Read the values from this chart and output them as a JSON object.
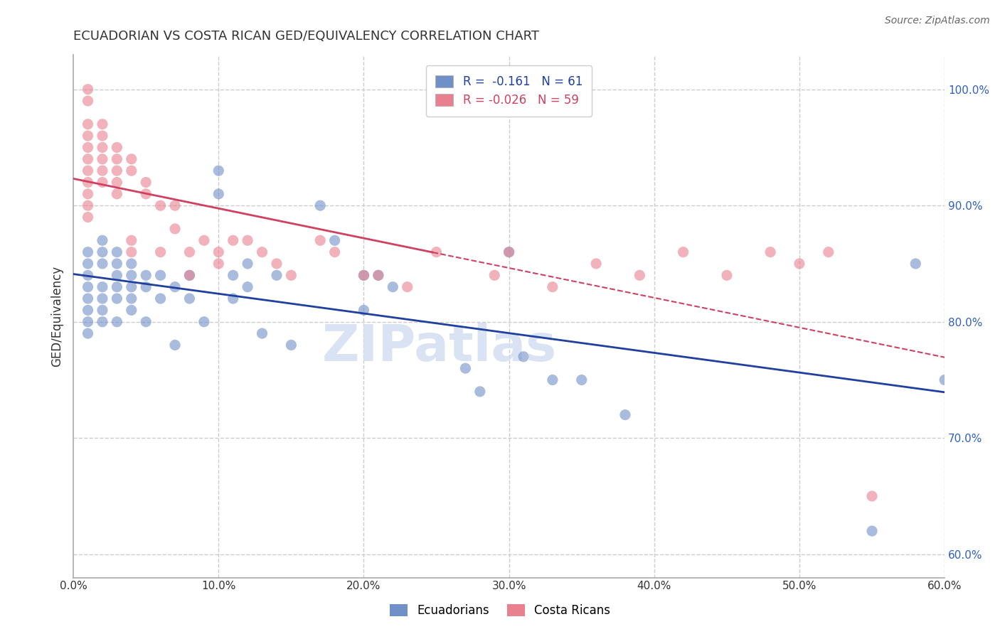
{
  "title": "ECUADORIAN VS COSTA RICAN GED/EQUIVALENCY CORRELATION CHART",
  "source": "Source: ZipAtlas.com",
  "ylabel": "GED/Equivalency",
  "xlabel_ticks": [
    "0.0%",
    "10.0%",
    "20.0%",
    "30.0%",
    "40.0%",
    "50.0%",
    "60.0%"
  ],
  "xlabel_vals": [
    0.0,
    0.1,
    0.2,
    0.3,
    0.4,
    0.5,
    0.6
  ],
  "ylabel_ticks": [
    "60.0%",
    "70.0%",
    "80.0%",
    "90.0%",
    "100.0%"
  ],
  "ylabel_vals": [
    0.6,
    0.7,
    0.8,
    0.9,
    1.0
  ],
  "xlim": [
    0.0,
    0.6
  ],
  "ylim": [
    0.58,
    1.03
  ],
  "blue_color": "#7090c8",
  "pink_color": "#e88090",
  "blue_line_color": "#2040a0",
  "pink_line_color": "#d04060",
  "blue_R": -0.161,
  "blue_N": 61,
  "pink_R": -0.026,
  "pink_N": 59,
  "ecuadorian_x": [
    0.01,
    0.01,
    0.01,
    0.01,
    0.01,
    0.01,
    0.01,
    0.01,
    0.02,
    0.02,
    0.02,
    0.02,
    0.02,
    0.02,
    0.02,
    0.03,
    0.03,
    0.03,
    0.03,
    0.03,
    0.03,
    0.04,
    0.04,
    0.04,
    0.04,
    0.04,
    0.05,
    0.05,
    0.05,
    0.06,
    0.06,
    0.07,
    0.07,
    0.08,
    0.08,
    0.09,
    0.1,
    0.1,
    0.11,
    0.11,
    0.12,
    0.12,
    0.13,
    0.14,
    0.15,
    0.17,
    0.18,
    0.2,
    0.2,
    0.21,
    0.22,
    0.27,
    0.28,
    0.3,
    0.31,
    0.33,
    0.35,
    0.38,
    0.55,
    0.58,
    0.6
  ],
  "ecuadorian_y": [
    0.86,
    0.85,
    0.84,
    0.83,
    0.82,
    0.81,
    0.8,
    0.79,
    0.87,
    0.86,
    0.85,
    0.83,
    0.82,
    0.81,
    0.8,
    0.86,
    0.85,
    0.84,
    0.83,
    0.82,
    0.8,
    0.85,
    0.84,
    0.83,
    0.82,
    0.81,
    0.84,
    0.83,
    0.8,
    0.84,
    0.82,
    0.83,
    0.78,
    0.84,
    0.82,
    0.8,
    0.93,
    0.91,
    0.84,
    0.82,
    0.85,
    0.83,
    0.79,
    0.84,
    0.78,
    0.9,
    0.87,
    0.84,
    0.81,
    0.84,
    0.83,
    0.76,
    0.74,
    0.86,
    0.77,
    0.75,
    0.75,
    0.72,
    0.62,
    0.85,
    0.75
  ],
  "costarican_x": [
    0.01,
    0.01,
    0.01,
    0.01,
    0.01,
    0.01,
    0.01,
    0.01,
    0.01,
    0.01,
    0.01,
    0.02,
    0.02,
    0.02,
    0.02,
    0.02,
    0.02,
    0.03,
    0.03,
    0.03,
    0.03,
    0.03,
    0.04,
    0.04,
    0.04,
    0.04,
    0.05,
    0.05,
    0.06,
    0.06,
    0.07,
    0.07,
    0.08,
    0.08,
    0.09,
    0.1,
    0.1,
    0.11,
    0.12,
    0.13,
    0.14,
    0.15,
    0.17,
    0.18,
    0.2,
    0.21,
    0.23,
    0.25,
    0.29,
    0.3,
    0.33,
    0.36,
    0.39,
    0.42,
    0.45,
    0.48,
    0.5,
    0.52,
    0.55
  ],
  "costarican_y": [
    1.0,
    0.99,
    0.97,
    0.96,
    0.95,
    0.94,
    0.93,
    0.92,
    0.91,
    0.9,
    0.89,
    0.97,
    0.96,
    0.95,
    0.94,
    0.93,
    0.92,
    0.95,
    0.94,
    0.93,
    0.92,
    0.91,
    0.94,
    0.93,
    0.87,
    0.86,
    0.92,
    0.91,
    0.9,
    0.86,
    0.9,
    0.88,
    0.86,
    0.84,
    0.87,
    0.86,
    0.85,
    0.87,
    0.87,
    0.86,
    0.85,
    0.84,
    0.87,
    0.86,
    0.84,
    0.84,
    0.83,
    0.86,
    0.84,
    0.86,
    0.83,
    0.85,
    0.84,
    0.86,
    0.84,
    0.86,
    0.85,
    0.86,
    0.65
  ],
  "background_color": "#ffffff",
  "grid_color": "#cccccc",
  "watermark": "ZIPatlas",
  "watermark_color": "#d0ddf0"
}
